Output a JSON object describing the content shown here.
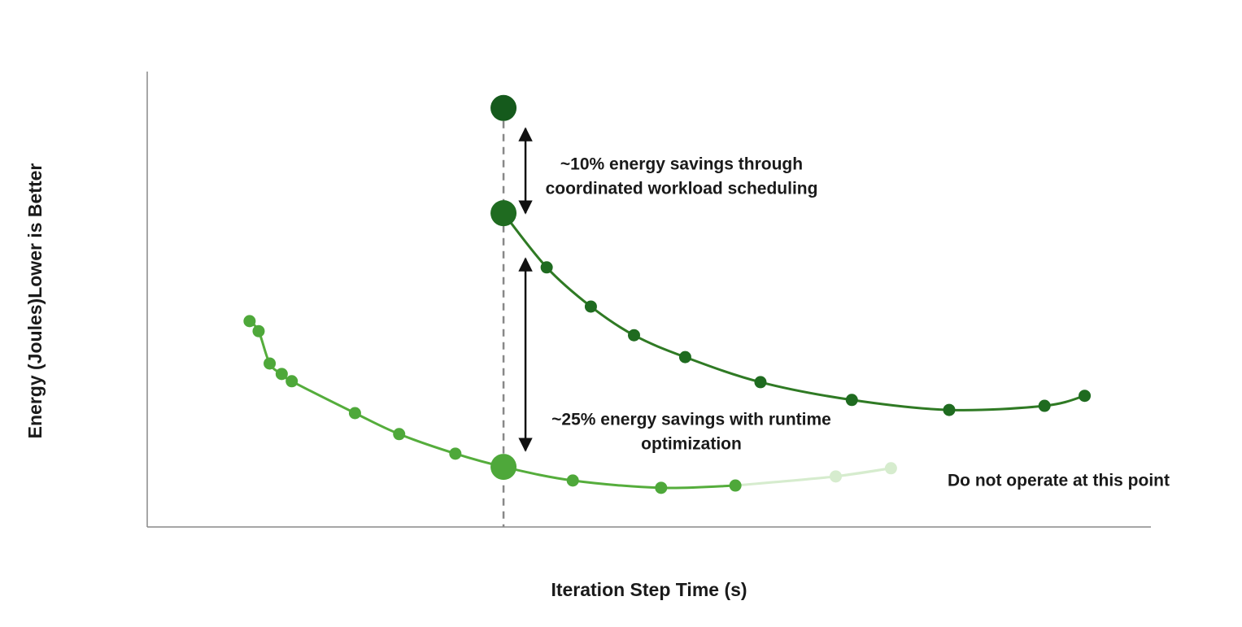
{
  "chart_data": {
    "type": "line",
    "x_label": "Iteration Step Time (s)",
    "y_label": "Energy (Joules)Lower is Better",
    "xlim": [
      0,
      100
    ],
    "ylim": [
      0,
      100
    ],
    "vline": 35.5,
    "baseline_point": {
      "x": 35.5,
      "y": 92.0,
      "color": "#155a1c"
    },
    "series": [
      {
        "color": "#2f7a24",
        "marker_color": "#1f6b20",
        "x": [
          35.5,
          39.8,
          44.2,
          48.5,
          53.6,
          61.1,
          70.2,
          79.9,
          89.4,
          93.4
        ],
        "values": [
          68.9,
          57.0,
          48.4,
          42.1,
          37.3,
          31.8,
          27.9,
          25.7,
          26.6,
          28.8
        ]
      },
      {
        "color": "#55ad3c",
        "marker_color": "#4ea83a",
        "x": [
          10.2,
          11.1,
          12.2,
          13.4,
          14.4,
          20.7,
          25.1,
          30.7,
          35.5,
          42.4,
          51.2,
          58.6
        ],
        "values": [
          45.2,
          43.0,
          35.9,
          33.6,
          32.0,
          25.0,
          20.4,
          16.1,
          13.2,
          10.2,
          8.6,
          9.1
        ]
      },
      {
        "color": "#d6ecce",
        "marker_color": "#d6ecce",
        "x": [
          68.6,
          74.1
        ],
        "values": [
          11.1,
          12.9
        ]
      }
    ],
    "annotations": [
      [
        "~10% energy savings through",
        "coordinated workload scheduling"
      ],
      [
        "~25% energy savings with runtime",
        "optimization"
      ],
      [
        "Do not operate at this point"
      ]
    ]
  }
}
